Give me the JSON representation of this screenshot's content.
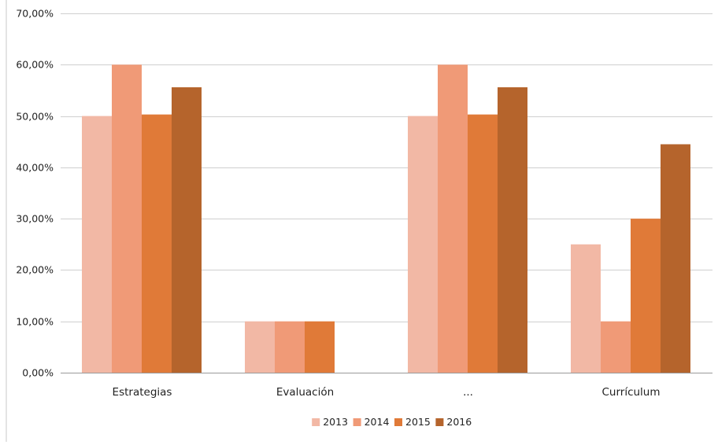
{
  "chart_data": {
    "type": "bar",
    "categories": [
      "Estrategias",
      "Evaluación",
      "...",
      "Currículum"
    ],
    "series": [
      {
        "name": "2013",
        "color": "#f2b8a5",
        "values": [
          0.5,
          0.1,
          0.5,
          0.25
        ]
      },
      {
        "name": "2014",
        "color": "#f09a77",
        "values": [
          0.6,
          0.1,
          0.6,
          0.1
        ]
      },
      {
        "name": "2015",
        "color": "#e07a38",
        "values": [
          0.503,
          0.1,
          0.503,
          0.3
        ]
      },
      {
        "name": "2016",
        "color": "#b5642c",
        "values": [
          0.556,
          null,
          0.556,
          0.445
        ]
      }
    ],
    "ylim": [
      0,
      0.7
    ],
    "yticks": [
      0,
      0.1,
      0.2,
      0.3,
      0.4,
      0.5,
      0.6,
      0.7
    ],
    "ytick_labels": [
      "0,00%",
      "10,00%",
      "20,00%",
      "30,00%",
      "40,00%",
      "50,00%",
      "60,00%",
      "70,00%"
    ],
    "title": "",
    "xlabel": "",
    "ylabel": "",
    "grid": true,
    "legend": "bottom-center"
  }
}
